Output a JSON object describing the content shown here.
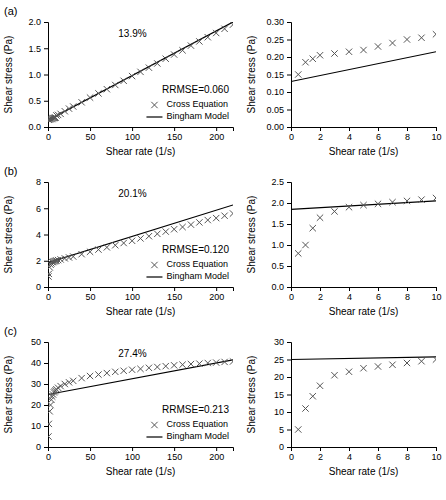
{
  "chart_data": [
    {
      "type": "scatter",
      "title": "(a)",
      "xlabel": "Shear rate (1/s)",
      "ylabel": "Shear stress (Pa)",
      "annotations": [
        "13.9%",
        "RRMSE=0.060"
      ],
      "legend": "lower right",
      "xlim": [
        0,
        220
      ],
      "xticks": [
        0,
        50,
        100,
        150,
        200
      ],
      "ylim": [
        0,
        2.0
      ],
      "yticks": [
        {
          "value": 0,
          "label": "0.0"
        },
        0.5,
        {
          "value": 1.0,
          "label": "1.0"
        },
        1.5,
        {
          "value": 2.0,
          "label": "2.0"
        }
      ],
      "series": [
        {
          "name": "Cross Equation",
          "type": "scatter",
          "marker": "x",
          "color": "#555555",
          "x": [
            0.5,
            1,
            2,
            3,
            4,
            5,
            6,
            7,
            8,
            9,
            10,
            12,
            15,
            20,
            25,
            30,
            40,
            50,
            60,
            70,
            80,
            90,
            100,
            110,
            120,
            130,
            140,
            150,
            160,
            170,
            180,
            190,
            200,
            210,
            220
          ],
          "values": [
            0.14,
            0.14,
            0.145,
            0.15,
            0.155,
            0.16,
            0.165,
            0.17,
            0.175,
            0.18,
            0.22,
            0.23,
            0.25,
            0.3,
            0.35,
            0.39,
            0.47,
            0.56,
            0.64,
            0.72,
            0.8,
            0.88,
            0.97,
            1.05,
            1.13,
            1.21,
            1.3,
            1.38,
            1.46,
            1.55,
            1.63,
            1.71,
            1.79,
            1.87,
            1.95
          ]
        },
        {
          "name": "Bingham Model",
          "type": "line",
          "line_style": "solid",
          "color": "#000000",
          "x": [
            0,
            220
          ],
          "values": [
            0.13,
            2.0
          ]
        }
      ]
    },
    {
      "type": "scatter",
      "xlabel": "Shear rate (1/s)",
      "ylabel": "Shear stress (Pa)",
      "xlim": [
        0,
        10
      ],
      "xticks": [
        0,
        2,
        4,
        6,
        8,
        10
      ],
      "ylim": [
        0,
        0.3
      ],
      "yticks": [
        {
          "value": 0,
          "label": "0.00"
        },
        0.05,
        {
          "value": 0.1,
          "label": "0.10"
        },
        0.15,
        {
          "value": 0.2,
          "label": "0.20"
        },
        0.25,
        {
          "value": 0.3,
          "label": "0.30"
        }
      ],
      "series": [
        {
          "type": "scatter",
          "marker": "x",
          "color": "#555555",
          "x": [
            0.5,
            1,
            1.5,
            2,
            3,
            4,
            5,
            6,
            7,
            8,
            9,
            10
          ],
          "values": [
            0.15,
            0.185,
            0.195,
            0.205,
            0.21,
            0.215,
            0.22,
            0.23,
            0.24,
            0.25,
            0.255,
            0.265
          ]
        },
        {
          "type": "line",
          "line_style": "solid",
          "color": "#000000",
          "x": [
            0,
            10
          ],
          "values": [
            0.13,
            0.215
          ]
        }
      ]
    },
    {
      "type": "scatter",
      "title": "(b)",
      "xlabel": "Shear rate (1/s)",
      "ylabel": "Shear stress (Pa)",
      "annotations": [
        "20.1%",
        "RRMSE=0.120"
      ],
      "legend": "lower right",
      "xlim": [
        0,
        220
      ],
      "xticks": [
        0,
        50,
        100,
        150,
        200
      ],
      "ylim": [
        0,
        8
      ],
      "yticks": [
        0,
        2,
        4,
        6,
        8
      ],
      "series": [
        {
          "name": "Cross Equation",
          "type": "scatter",
          "marker": "x",
          "color": "#555555",
          "x": [
            0.5,
            1,
            2,
            3,
            4,
            5,
            6,
            7,
            8,
            9,
            10,
            12,
            15,
            20,
            25,
            30,
            40,
            50,
            60,
            70,
            80,
            90,
            100,
            110,
            120,
            130,
            140,
            150,
            160,
            170,
            180,
            190,
            200,
            210,
            220
          ],
          "values": [
            0.8,
            1.0,
            1.5,
            1.7,
            1.8,
            1.9,
            1.92,
            1.95,
            1.97,
            1.99,
            2.02,
            2.05,
            2.1,
            2.18,
            2.25,
            2.32,
            2.5,
            2.68,
            2.85,
            3.02,
            3.18,
            3.35,
            3.52,
            3.7,
            3.87,
            4.05,
            4.22,
            4.4,
            4.57,
            4.75,
            4.92,
            5.1,
            5.25,
            5.43,
            5.6
          ]
        },
        {
          "name": "Bingham Model",
          "type": "line",
          "line_style": "solid",
          "color": "#000000",
          "x": [
            0,
            220
          ],
          "values": [
            1.85,
            6.25
          ]
        }
      ]
    },
    {
      "type": "scatter",
      "xlabel": "Shear rate (1/s)",
      "ylabel": "Shear stress (Pa)",
      "xlim": [
        0,
        10
      ],
      "xticks": [
        0,
        2,
        4,
        6,
        8,
        10
      ],
      "ylim": [
        0,
        2.5
      ],
      "yticks": [
        {
          "value": 0,
          "label": "0.0"
        },
        0.5,
        {
          "value": 1.0,
          "label": "1.0"
        },
        1.5,
        {
          "value": 2.0,
          "label": "2.0"
        },
        2.5
      ],
      "series": [
        {
          "type": "scatter",
          "marker": "x",
          "color": "#555555",
          "x": [
            0.5,
            1,
            1.5,
            2,
            3,
            4,
            5,
            6,
            7,
            8,
            9,
            10
          ],
          "values": [
            0.8,
            1.0,
            1.4,
            1.65,
            1.8,
            1.9,
            1.95,
            1.98,
            2.02,
            2.05,
            2.08,
            2.12
          ]
        },
        {
          "type": "line",
          "line_style": "solid",
          "color": "#000000",
          "x": [
            0,
            10
          ],
          "values": [
            1.85,
            2.05
          ]
        }
      ]
    },
    {
      "type": "scatter",
      "title": "(c)",
      "xlabel": "Shear rate (1/s)",
      "ylabel": "Shear stress (Pa)",
      "annotations": [
        "27.4%",
        "RRMSE=0.213"
      ],
      "legend": "lower right",
      "xlim": [
        0,
        220
      ],
      "xticks": [
        0,
        50,
        100,
        150,
        200
      ],
      "ylim": [
        0,
        50
      ],
      "yticks": [
        0,
        10,
        20,
        30,
        40,
        50
      ],
      "series": [
        {
          "name": "Cross Equation",
          "type": "scatter",
          "marker": "x",
          "color": "#555555",
          "x": [
            0.5,
            1,
            2,
            3,
            4,
            5,
            6,
            7,
            8,
            9,
            10,
            12,
            15,
            20,
            25,
            30,
            40,
            50,
            60,
            70,
            80,
            90,
            100,
            110,
            120,
            130,
            140,
            150,
            160,
            170,
            180,
            190,
            200,
            210,
            220
          ],
          "values": [
            5.0,
            11.0,
            17.0,
            20.0,
            22.5,
            24.0,
            25.0,
            26.0,
            26.5,
            27.0,
            27.5,
            28.2,
            29.0,
            30.0,
            30.8,
            31.5,
            32.8,
            33.8,
            34.5,
            35.2,
            35.8,
            36.3,
            36.8,
            37.2,
            37.7,
            38.1,
            38.5,
            38.9,
            39.2,
            39.5,
            39.7,
            40.0,
            40.2,
            40.5,
            40.7
          ]
        },
        {
          "name": "Bingham Model",
          "type": "line",
          "line_style": "solid",
          "color": "#000000",
          "x": [
            0,
            220
          ],
          "values": [
            25.0,
            41.5
          ]
        }
      ]
    },
    {
      "type": "scatter",
      "xlabel": "Shear rate (1/s)",
      "ylabel": "Shear stress (Pa)",
      "xlim": [
        0,
        10
      ],
      "xticks": [
        0,
        2,
        4,
        6,
        8,
        10
      ],
      "ylim": [
        0,
        30
      ],
      "yticks": [
        0,
        5,
        10,
        15,
        20,
        25,
        30
      ],
      "series": [
        {
          "type": "scatter",
          "marker": "x",
          "color": "#555555",
          "x": [
            0.5,
            1,
            1.5,
            2,
            3,
            4,
            5,
            6,
            7,
            8,
            9,
            10
          ],
          "values": [
            5.0,
            11.0,
            14.5,
            17.5,
            20.5,
            21.5,
            22.5,
            23.0,
            23.5,
            24.0,
            24.5,
            25.0
          ]
        },
        {
          "type": "line",
          "line_style": "solid",
          "color": "#000000",
          "x": [
            0,
            10
          ],
          "values": [
            25.0,
            25.75
          ]
        }
      ]
    }
  ]
}
